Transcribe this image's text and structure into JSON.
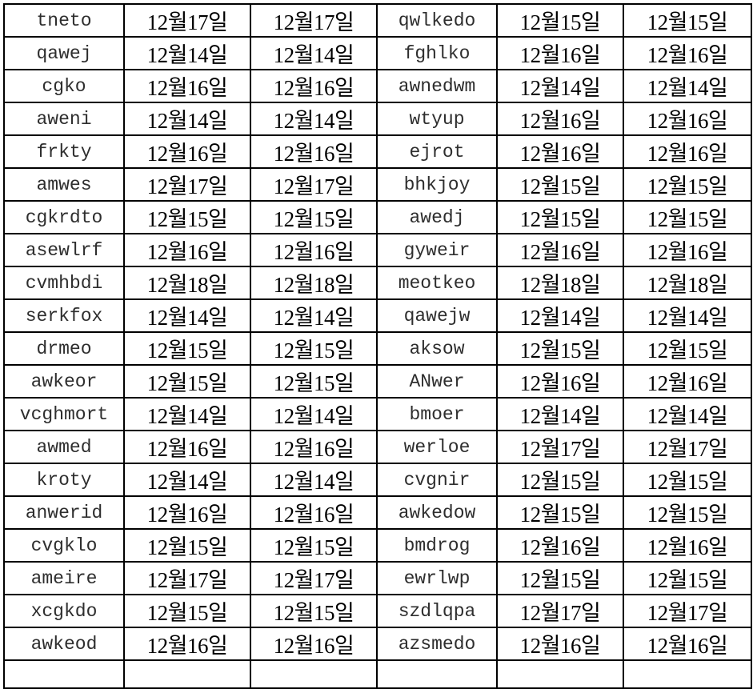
{
  "rows": [
    [
      "tneto",
      "12월17일",
      "12월17일",
      "qwlkedo",
      "12월15일",
      "12월15일"
    ],
    [
      "qawej",
      "12월14일",
      "12월14일",
      "fghlko",
      "12월16일",
      "12월16일"
    ],
    [
      "cgko",
      "12월16일",
      "12월16일",
      "awnedwm",
      "12월14일",
      "12월14일"
    ],
    [
      "aweni",
      "12월14일",
      "12월14일",
      "wtyup",
      "12월16일",
      "12월16일"
    ],
    [
      "frkty",
      "12월16일",
      "12월16일",
      "ejrot",
      "12월16일",
      "12월16일"
    ],
    [
      "amwes",
      "12월17일",
      "12월17일",
      "bhkjoy",
      "12월15일",
      "12월15일"
    ],
    [
      "cgkrdto",
      "12월15일",
      "12월15일",
      "awedj",
      "12월15일",
      "12월15일"
    ],
    [
      "asewlrf",
      "12월16일",
      "12월16일",
      "gyweir",
      "12월16일",
      "12월16일"
    ],
    [
      "cvmhbdi",
      "12월18일",
      "12월18일",
      "meotkeo",
      "12월18일",
      "12월18일"
    ],
    [
      "serkfox",
      "12월14일",
      "12월14일",
      "qawejw",
      "12월14일",
      "12월14일"
    ],
    [
      "drmeo",
      "12월15일",
      "12월15일",
      "aksow",
      "12월15일",
      "12월15일"
    ],
    [
      "awkeor",
      "12월15일",
      "12월15일",
      "ANwer",
      "12월16일",
      "12월16일"
    ],
    [
      "vcghmort",
      "12월14일",
      "12월14일",
      "bmoer",
      "12월14일",
      "12월14일"
    ],
    [
      "awmed",
      "12월16일",
      "12월16일",
      "werloe",
      "12월17일",
      "12월17일"
    ],
    [
      "kroty",
      "12월14일",
      "12월14일",
      "cvgnir",
      "12월15일",
      "12월15일"
    ],
    [
      "anwerid",
      "12월16일",
      "12월16일",
      "awkedow",
      "12월15일",
      "12월15일"
    ],
    [
      "cvgklo",
      "12월15일",
      "12월15일",
      "bmdrog",
      "12월16일",
      "12월16일"
    ],
    [
      "ameire",
      "12월17일",
      "12월17일",
      "ewrlwp",
      "12월15일",
      "12월15일"
    ],
    [
      "xcgkdo",
      "12월15일",
      "12월15일",
      "szdlqpa",
      "12월17일",
      "12월17일"
    ],
    [
      "awkeod",
      "12월16일",
      "12월16일",
      "azsmedo",
      "12월16일",
      "12월16일"
    ]
  ]
}
